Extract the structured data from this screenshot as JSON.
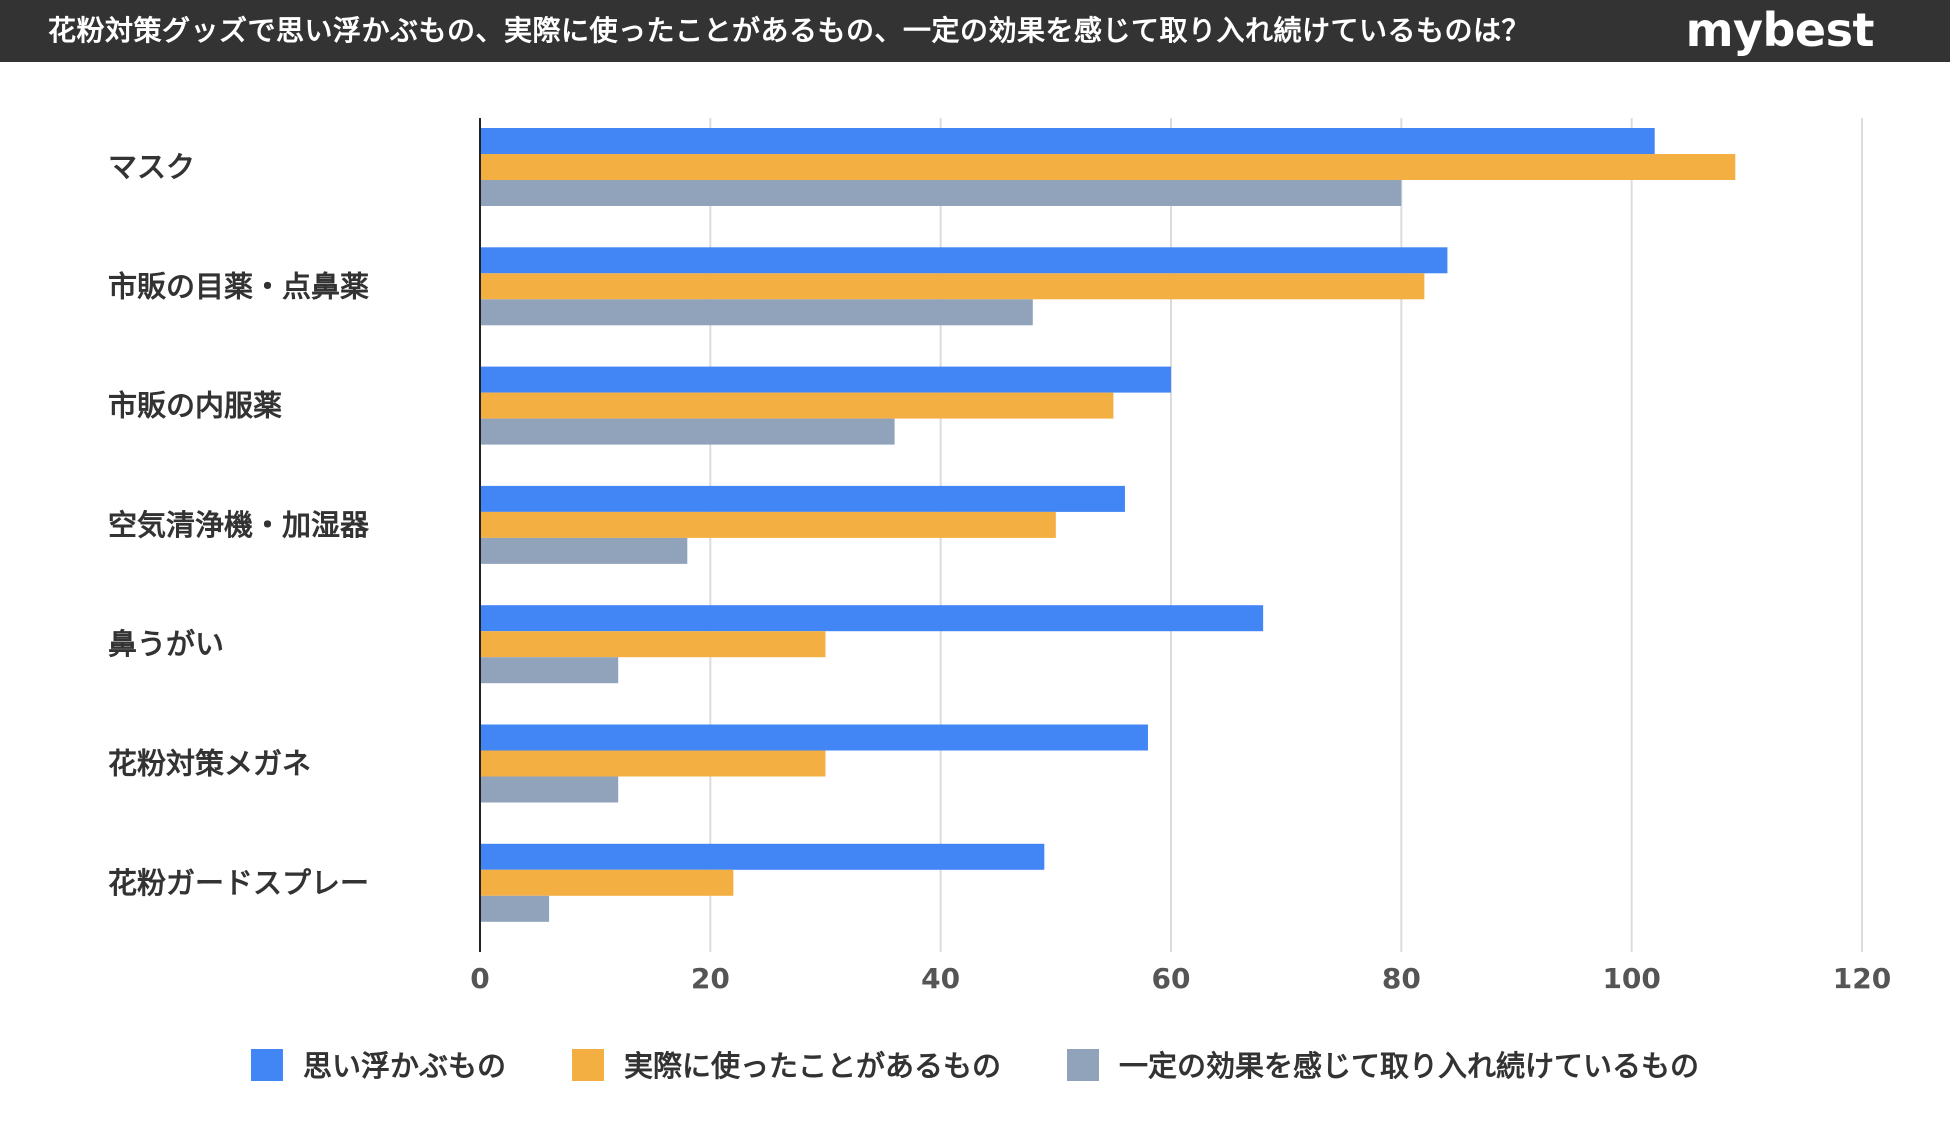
{
  "header": {
    "title": "花粉対策グッズで思い浮かぶもの、実際に使ったことがあるもの、一定の効果を感じて取り入れ続けているものは？",
    "brand": "mybest"
  },
  "chart_data": {
    "type": "bar",
    "orientation": "horizontal",
    "categories": [
      "マスク",
      "市販の目薬・点鼻薬",
      "市販の内服薬",
      "空気清浄機・加湿器",
      "鼻うがい",
      "花粉対策メガネ",
      "花粉ガードスプレー"
    ],
    "series": [
      {
        "name": "思い浮かぶもの",
        "color": "#4285F4",
        "values": [
          102,
          84,
          60,
          56,
          68,
          58,
          49
        ]
      },
      {
        "name": "実際に使ったことがあるもの",
        "color": "#F4AF42",
        "values": [
          109,
          82,
          55,
          50,
          30,
          30,
          22
        ]
      },
      {
        "name": "一定の効果を感じて取り入れ続けているもの",
        "color": "#91A3BB",
        "values": [
          80,
          48,
          36,
          18,
          12,
          12,
          6
        ]
      }
    ],
    "xlim": [
      0,
      120
    ],
    "xticks": [
      "0",
      "20",
      "40",
      "60",
      "80",
      "100",
      "120"
    ],
    "grid": true,
    "legend": "bottom"
  }
}
